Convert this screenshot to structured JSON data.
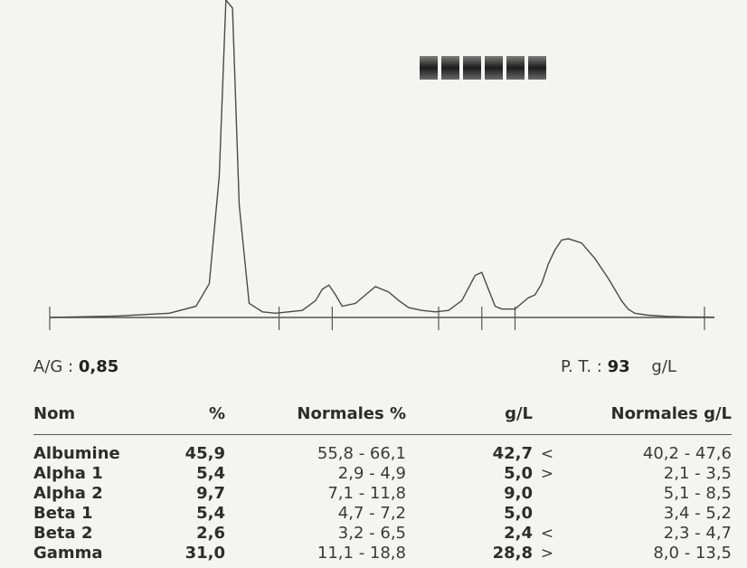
{
  "summary": {
    "ag_label": "A/G :",
    "ag_value": "0,85",
    "pt_label": "P. T. :",
    "pt_value": "93",
    "pt_unit": "g/L"
  },
  "table": {
    "headers": [
      "Nom",
      "%",
      "Normales %",
      "g/L",
      "Normales g/L"
    ],
    "rows": [
      {
        "name": "Albumine",
        "pct": "45,9",
        "normal_pct": "55,8 - 66,1",
        "gl": "42,7",
        "flag": "<",
        "normal_gl": "40,2 - 47,6"
      },
      {
        "name": "Alpha 1",
        "pct": "5,4",
        "normal_pct": "2,9 - 4,9",
        "gl": "5,0",
        "flag": ">",
        "normal_gl": "2,1 - 3,5"
      },
      {
        "name": "Alpha 2",
        "pct": "9,7",
        "normal_pct": "7,1 - 11,8",
        "gl": "9,0",
        "flag": "",
        "normal_gl": "5,1 - 8,5"
      },
      {
        "name": "Beta 1",
        "pct": "5,4",
        "normal_pct": "4,7 - 7,2",
        "gl": "5,0",
        "flag": "",
        "normal_gl": "3,4 - 5,2"
      },
      {
        "name": "Beta 2",
        "pct": "2,6",
        "normal_pct": "3,2 - 6,5",
        "gl": "2,4",
        "flag": "<",
        "normal_gl": "2,3 - 4,7"
      },
      {
        "name": "Gamma",
        "pct": "31,0",
        "normal_pct": "11,1 - 18,8",
        "gl": "28,8",
        "flag": ">",
        "normal_gl": "8,0 - 13,5"
      }
    ]
  },
  "chart_data": {
    "type": "line",
    "xlim": [
      0,
      100
    ],
    "ylim": [
      0,
      100
    ],
    "grid": false,
    "series": [
      {
        "x": [
          0,
          10,
          18,
          22,
          24,
          25.5,
          26.5,
          27.5,
          28.5,
          30,
          32,
          34,
          38,
          40,
          41,
          42,
          43,
          44,
          46,
          48,
          49,
          51,
          52.5,
          54,
          56,
          58,
          60,
          62,
          64,
          65,
          66,
          67,
          68,
          70,
          71,
          72,
          73,
          74,
          75,
          76,
          77,
          78,
          80,
          82,
          84,
          85,
          86,
          87,
          88,
          90,
          93,
          96,
          100
        ],
        "y": [
          0,
          0.5,
          1.5,
          4,
          12,
          50,
          115,
          110,
          40,
          5,
          2,
          1.5,
          2.5,
          6,
          10,
          11.5,
          8,
          4,
          5,
          9,
          11,
          9,
          6,
          3.5,
          2.5,
          2,
          2.5,
          6,
          15,
          16,
          10,
          4,
          3,
          3,
          5,
          7,
          8,
          12,
          19,
          24,
          27.5,
          28,
          26.5,
          21,
          14,
          10,
          6,
          3,
          1.5,
          0.8,
          0.4,
          0.2,
          0.1
        ]
      }
    ],
    "baseline_ticks_x": [
      0,
      34.5,
      42.5,
      58.5,
      65,
      70,
      98.5
    ],
    "gel_band_segments": 6
  }
}
